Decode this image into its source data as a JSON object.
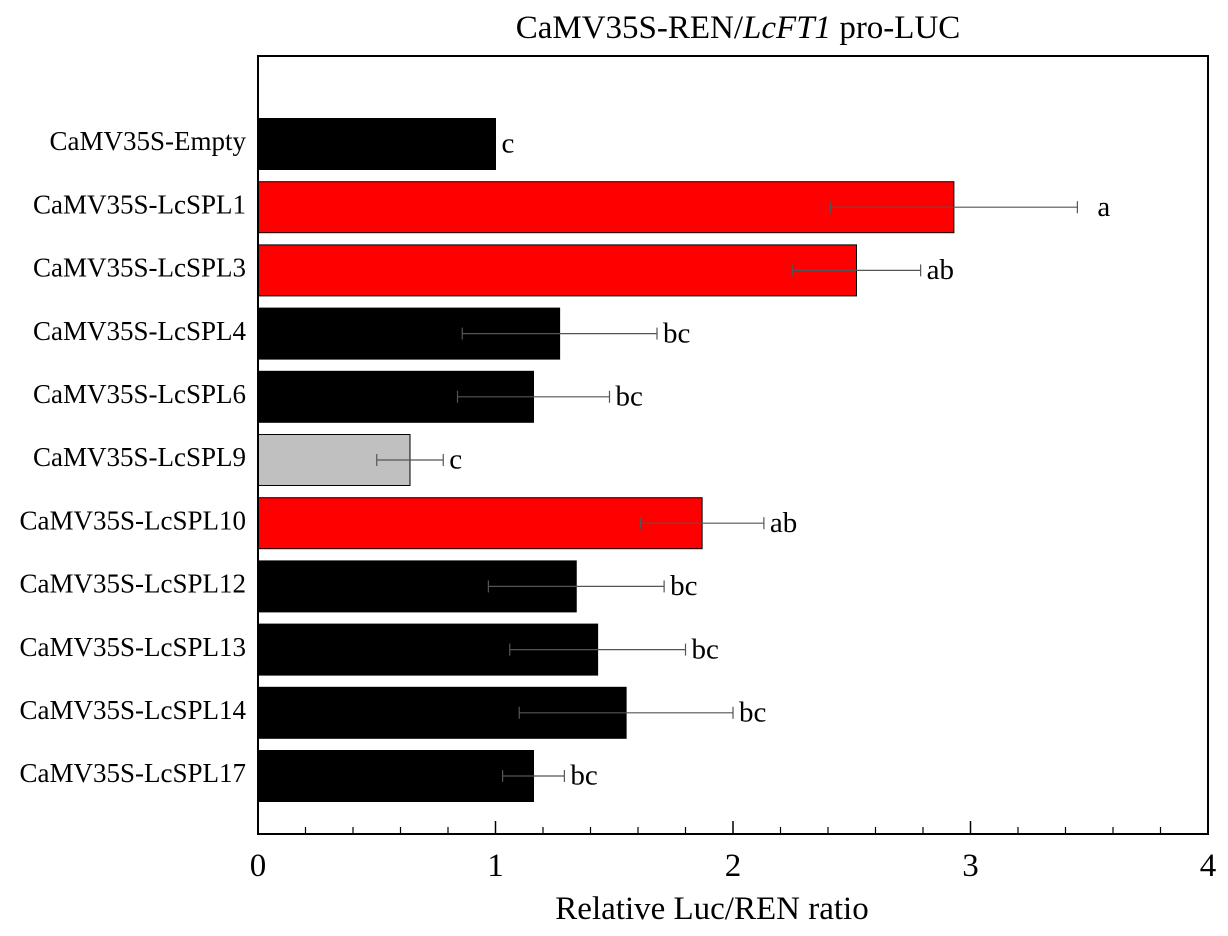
{
  "chart_data": {
    "type": "bar",
    "orientation": "horizontal",
    "title": {
      "prefix": "CaMV35S-REN/",
      "italic": "LcFT1",
      "suffix": " pro-LUC"
    },
    "xlabel": "Relative Luc/REN ratio",
    "ylabel": "",
    "xlim": [
      0,
      4
    ],
    "xticks": [
      0,
      1,
      2,
      3,
      4
    ],
    "minor_tick_step": 0.2,
    "grid": false,
    "categories": [
      "CaMV35S-Empty",
      "CaMV35S-LcSPL1",
      "CaMV35S-LcSPL3",
      "CaMV35S-LcSPL4",
      "CaMV35S-LcSPL6",
      "CaMV35S-LcSPL9",
      "CaMV35S-LcSPL10",
      "CaMV35S-LcSPL12",
      "CaMV35S-LcSPL13",
      "CaMV35S-LcSPL14",
      "CaMV35S-LcSPL17"
    ],
    "values": [
      1.0,
      2.93,
      2.52,
      1.27,
      1.16,
      0.64,
      1.87,
      1.34,
      1.43,
      1.55,
      1.16
    ],
    "errors": [
      0.0,
      0.52,
      0.27,
      0.41,
      0.32,
      0.14,
      0.26,
      0.37,
      0.37,
      0.45,
      0.13
    ],
    "significance": [
      "c",
      "a",
      "ab",
      "bc",
      "bc",
      "c",
      "ab",
      "bc",
      "bc",
      "bc",
      "bc"
    ],
    "bar_colors": [
      "#000000",
      "#ff0000",
      "#ff0000",
      "#000000",
      "#000000",
      "#c0c0c0",
      "#ff0000",
      "#000000",
      "#000000",
      "#000000",
      "#000000"
    ]
  }
}
